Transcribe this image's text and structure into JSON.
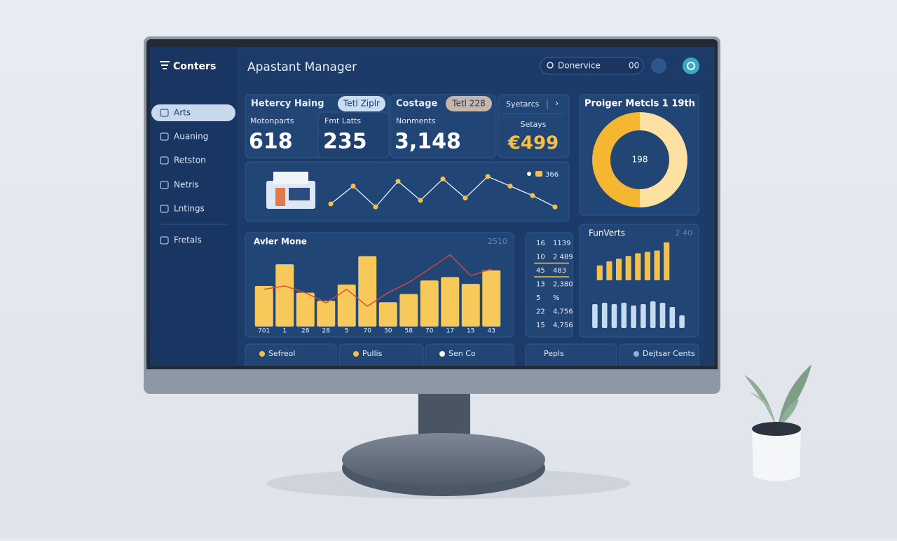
{
  "header": {
    "title": "Apastant Manager",
    "search": "Donervice",
    "search_hint": "00"
  },
  "sidebar": {
    "brand": "Conters",
    "items": [
      "Arts",
      "Auaning",
      "Retston",
      "Netris",
      "Lntings",
      "Fretals"
    ]
  },
  "cards": [
    {
      "title": "Hetercy Haing",
      "badge": "Tetl Ziplr",
      "metrics": [
        {
          "label": "Motonparts",
          "value": "618"
        },
        {
          "label": "Fmt Latts",
          "value": "235"
        }
      ]
    },
    {
      "title": "Costage",
      "badge": "Tetl 228",
      "metrics": [
        {
          "label": "Nonments",
          "value": "3,148"
        }
      ]
    },
    {
      "title": "Syetarcs",
      "action": "›",
      "metrics": [
        {
          "label": "Setays",
          "value": "€499"
        }
      ]
    }
  ],
  "table": {
    "rows": [
      [
        "16",
        "1139"
      ],
      [
        "10",
        "2 489"
      ],
      [
        "45",
        "483"
      ],
      [
        "13",
        "2,380"
      ],
      [
        "5",
        "%"
      ],
      [
        "22",
        "4,756"
      ],
      [
        "15",
        "4,756"
      ]
    ]
  },
  "footer": [
    {
      "label": "Sefreol",
      "color": "#f5c04a"
    },
    {
      "label": "Pullis",
      "color": "#f5c04a"
    },
    {
      "label": "Sen Co",
      "color": "#ffffff"
    },
    {
      "label": "Pepls"
    },
    {
      "label": "Dejtsar Cents",
      "color": "#8fb3dc"
    }
  ],
  "chart_data": [
    {
      "type": "line",
      "series": [
        {
          "name": "366",
          "color": "#f5c04a",
          "values": [
            20,
            50,
            15,
            58,
            26,
            62,
            30,
            66,
            50,
            34,
            15
          ]
        }
      ],
      "ylim": [
        0,
        80
      ]
    },
    {
      "type": "donut",
      "title": "Proiger Metcls 1 19th",
      "center_label": "198",
      "values": [
        50,
        50
      ],
      "colors": [
        "#fde1a2",
        "#f5b731"
      ]
    },
    {
      "type": "bar",
      "title": "Avler Mone",
      "subtitle": "2510",
      "categories": [
        "701",
        "1",
        "28",
        "28",
        "5",
        "70",
        "30",
        "58",
        "70",
        "17",
        "15",
        "43"
      ],
      "series": [
        {
          "color": "#f7c95a",
          "values": [
            60,
            92,
            50,
            38,
            62,
            104,
            36,
            48,
            68,
            73,
            63,
            83
          ]
        },
        {
          "type": "line",
          "color": "#d9473e",
          "values": [
            55,
            60,
            50,
            35,
            55,
            30,
            50,
            65,
            85,
            106,
            75,
            85
          ]
        }
      ],
      "ylim": [
        0,
        120
      ]
    },
    {
      "type": "bar",
      "title": "FunVerts",
      "subtitle": "2 40",
      "series": [
        {
          "color": "#f5c04a",
          "values": [
            22,
            28,
            32,
            36,
            40,
            42,
            44,
            56
          ]
        }
      ],
      "ylim": [
        0,
        60
      ]
    },
    {
      "type": "bar",
      "series": [
        {
          "color": "#c5dbf0",
          "values": [
            34,
            36,
            34,
            36,
            32,
            34,
            38,
            36,
            30,
            18
          ]
        }
      ],
      "ylim": [
        0,
        40
      ]
    }
  ]
}
